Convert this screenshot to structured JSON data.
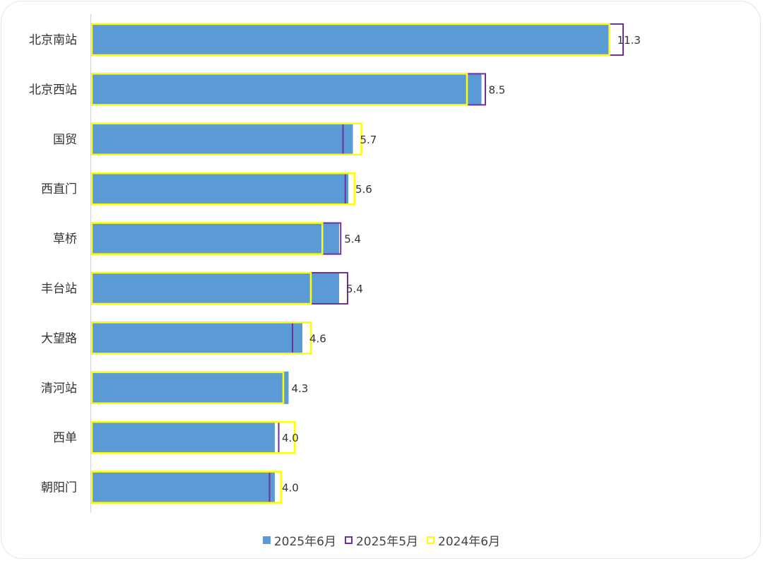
{
  "chart_data": {
    "type": "bar",
    "orientation": "horizontal",
    "categories": [
      "北京南站",
      "北京西站",
      "国贸",
      "西直门",
      "草桥",
      "丰台站",
      "大望路",
      "清河站",
      "西单",
      "朝阳门"
    ],
    "series": [
      {
        "name": "2025年6月",
        "values": [
          11.3,
          8.5,
          5.7,
          5.6,
          5.4,
          5.4,
          4.6,
          4.3,
          4.0,
          4.0
        ],
        "color": "#5b9bd5",
        "style": "filled"
      },
      {
        "name": "2025年5月",
        "values": [
          11.6,
          8.6,
          5.5,
          5.55,
          5.45,
          5.6,
          4.4,
          4.2,
          4.1,
          3.9
        ],
        "color": "#7030a0",
        "style": "outline"
      },
      {
        "name": "2024年6月",
        "values": [
          11.3,
          8.2,
          5.9,
          5.75,
          5.05,
          4.8,
          4.8,
          4.2,
          4.45,
          4.15
        ],
        "color": "#ffff00",
        "style": "outline"
      }
    ],
    "data_labels": [
      "11.3",
      "8.5",
      "5.7",
      "5.6",
      "5.4",
      "5.4",
      "4.6",
      "4.3",
      "4.0",
      "4.0"
    ],
    "xlim": [
      0,
      14.5
    ],
    "grid": false,
    "legend_position": "bottom"
  }
}
